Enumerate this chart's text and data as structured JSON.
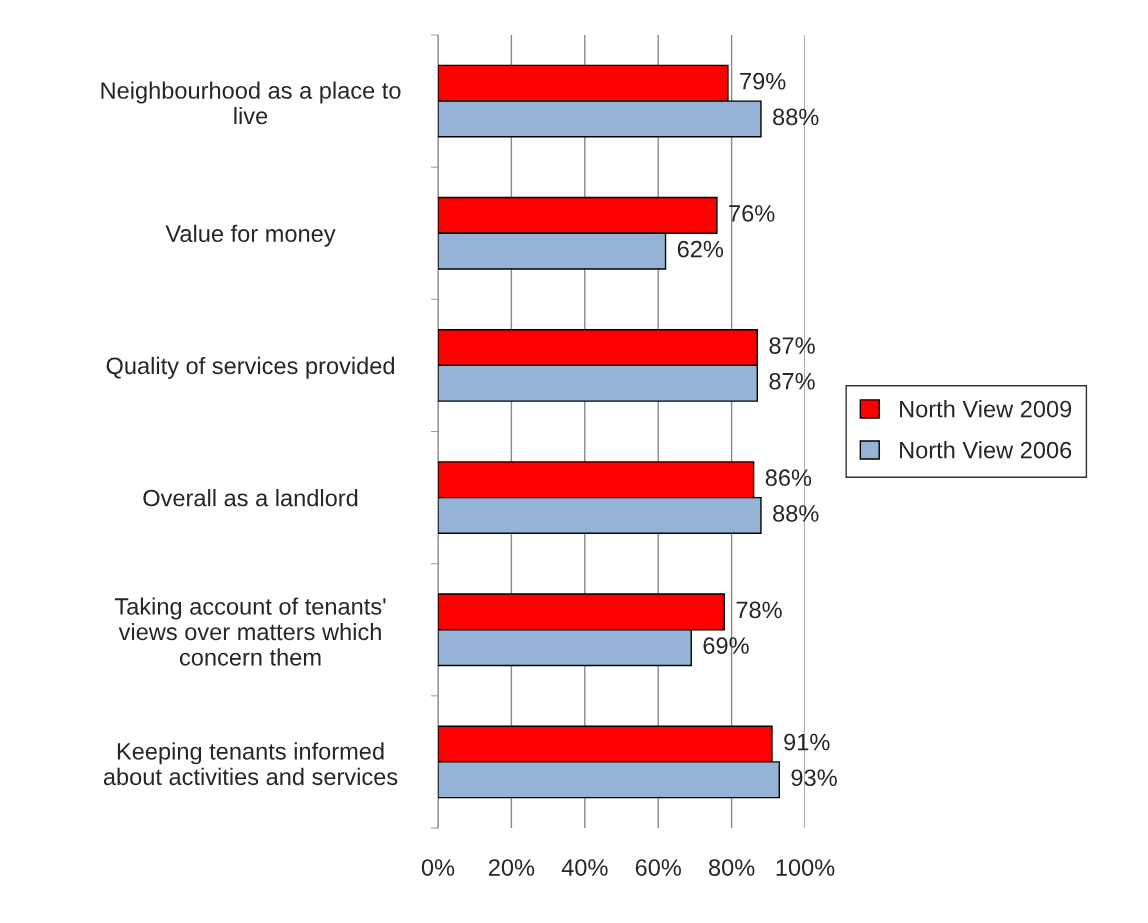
{
  "chart_data": {
    "type": "bar",
    "orientation": "horizontal",
    "categories": [
      "Neighbourhood as a place to\nlive",
      "Value for money",
      "Quality of services provided",
      "Overall as a landlord",
      "Taking account of tenants'\nviews over matters which\nconcern them",
      "Keeping tenants informed\nabout activities and services"
    ],
    "series": [
      {
        "name": "North View 2009",
        "color": "#ff0000",
        "values": [
          79,
          76,
          87,
          86,
          78,
          91
        ],
        "value_labels": [
          "79%",
          "76%",
          "87%",
          "86%",
          "78%",
          "91%"
        ]
      },
      {
        "name": "North View 2006",
        "color": "#95b3d7",
        "values": [
          88,
          62,
          87,
          88,
          69,
          93
        ],
        "value_labels": [
          "88%",
          "62%",
          "87%",
          "88%",
          "69%",
          "93%"
        ]
      }
    ],
    "xlim": [
      0,
      100
    ],
    "xticks": [
      {
        "value": 0,
        "label": "0%"
      },
      {
        "value": 20,
        "label": "20%"
      },
      {
        "value": 40,
        "label": "40%"
      },
      {
        "value": 60,
        "label": "60%"
      },
      {
        "value": 80,
        "label": "80%"
      },
      {
        "value": 100,
        "label": "100%"
      }
    ],
    "grid": "x",
    "legend": "right"
  }
}
